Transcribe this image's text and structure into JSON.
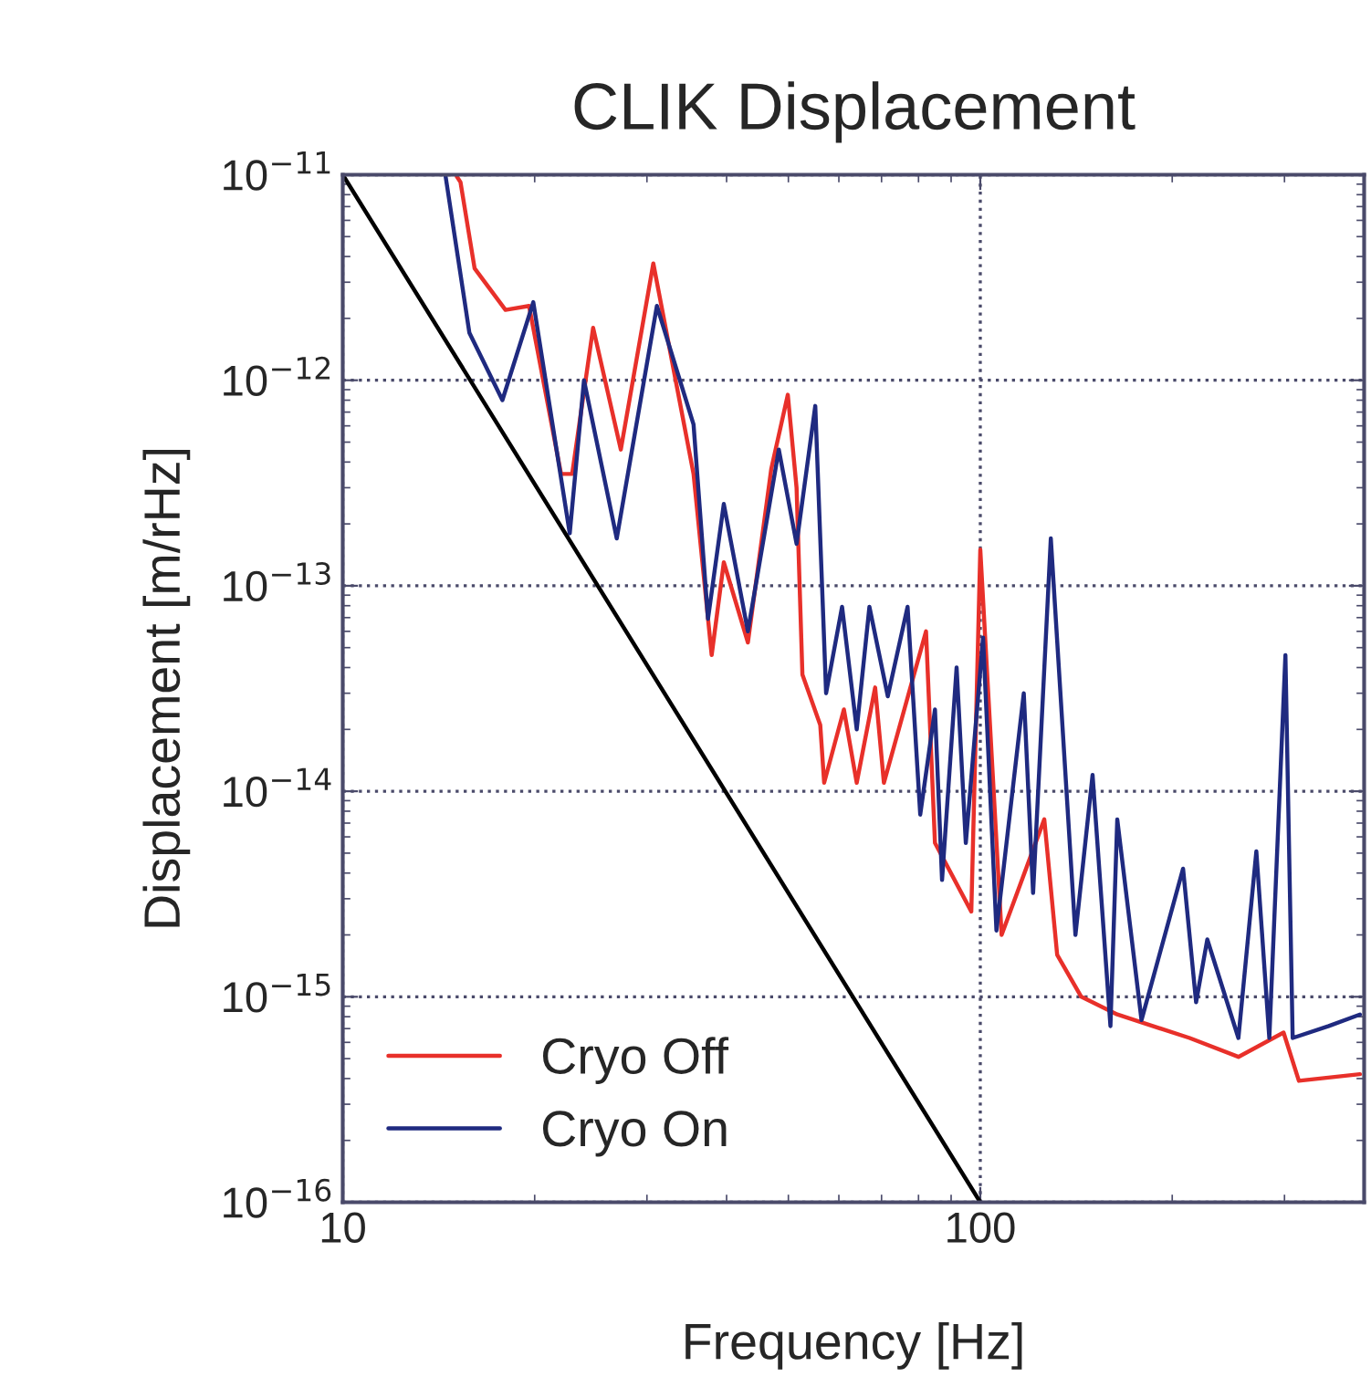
{
  "chart_data": {
    "type": "line",
    "title": "CLIK Displacement",
    "xlabel": "Frequency [Hz]",
    "ylabel": "Displacement [m/rHz]",
    "log": "xy",
    "grid": true,
    "legend": "bottom left",
    "line_style": "solid",
    "marker": "none",
    "xlim": [
      10,
      400
    ],
    "xticks": [
      10,
      100
    ],
    "ylim": [
      1e-16,
      1e-11
    ],
    "yticks": [
      {
        "value": 1e-16,
        "label": "10$^{−16}$"
      },
      {
        "value": 1e-15,
        "label": "10$^{−15}$"
      },
      {
        "value": 1e-14,
        "label": "10$^{−14}$"
      },
      {
        "value": 1e-13,
        "label": "10$^{−13}$"
      },
      {
        "value": 1e-12,
        "label": "10$^{−12}$"
      },
      {
        "value": 1e-11,
        "label": "10$^{−11}$"
      }
    ],
    "series": [
      {
        "name": "Cryo Off",
        "color": "#e8302a",
        "x": [
          15.1,
          15.3,
          16.1,
          18.0,
          19.6,
          22.0,
          22.9,
          24.7,
          27.3,
          30.7,
          35.5,
          37.9,
          39.6,
          43.2,
          47.0,
          49.9,
          51.5,
          52.6,
          56.1,
          56.9,
          61.1,
          64.0,
          68.4,
          70.6,
          82.2,
          84.9,
          96.8,
          100,
          108,
          126,
          132,
          144,
          164,
          213,
          254,
          299,
          316,
          394
        ],
        "values": [
          9.8e-12,
          9.2e-12,
          3.5e-12,
          2.2e-12,
          2.3e-12,
          3.5e-13,
          3.5e-13,
          1.8e-12,
          4.6e-13,
          3.7e-12,
          3.5e-13,
          4.6e-14,
          1.3e-13,
          5.3e-14,
          3.7e-13,
          8.5e-13,
          3e-13,
          3.7e-14,
          2.1e-14,
          1.1e-14,
          2.5e-14,
          1.1e-14,
          3.2e-14,
          1.1e-14,
          6e-14,
          5.6e-15,
          2.6e-15,
          1.5e-13,
          2e-15,
          7.3e-15,
          1.6e-15,
          1e-15,
          8.2e-16,
          6.3e-16,
          5.1e-16,
          6.7e-16,
          3.9e-16,
          4.2e-16
        ]
      },
      {
        "name": "Cryo On",
        "color": "#1f2a80",
        "x": [
          14.5,
          15.8,
          17.8,
          19.9,
          22.7,
          23.9,
          26.9,
          31.1,
          35.5,
          37.4,
          39.6,
          43.2,
          48.3,
          51.5,
          55.1,
          57.3,
          60.7,
          64.0,
          67.0,
          71.6,
          76.9,
          80.5,
          84.9,
          87.1,
          91.8,
          94.9,
          101,
          106,
          117,
          121,
          129,
          141,
          150,
          160,
          164,
          179,
          208,
          218,
          227,
          254,
          271,
          284,
          301,
          309,
          352,
          394
        ],
        "values": [
          9.8e-12,
          1.7e-12,
          8e-13,
          2.4e-12,
          1.8e-13,
          1e-12,
          1.7e-13,
          2.3e-12,
          6.1e-13,
          6.9e-14,
          2.5e-13,
          6e-14,
          4.6e-13,
          1.6e-13,
          7.5e-13,
          3e-14,
          7.9e-14,
          2e-14,
          7.9e-14,
          2.9e-14,
          7.9e-14,
          7.7e-15,
          2.5e-14,
          3.7e-15,
          4e-14,
          5.6e-15,
          5.6e-14,
          2.1e-15,
          3e-14,
          3.2e-15,
          1.7e-13,
          2e-15,
          1.2e-14,
          7.2e-16,
          7.3e-15,
          7.7e-16,
          4.2e-15,
          9.4e-16,
          1.9e-15,
          6.3e-16,
          5.1e-15,
          6.3e-16,
          4.6e-14,
          6.3e-16,
          7.2e-16,
          8.2e-16
        ]
      },
      {
        "color": "#000000",
        "x": [
          10,
          100
        ],
        "values": [
          1e-11,
          1e-16
        ]
      }
    ]
  }
}
